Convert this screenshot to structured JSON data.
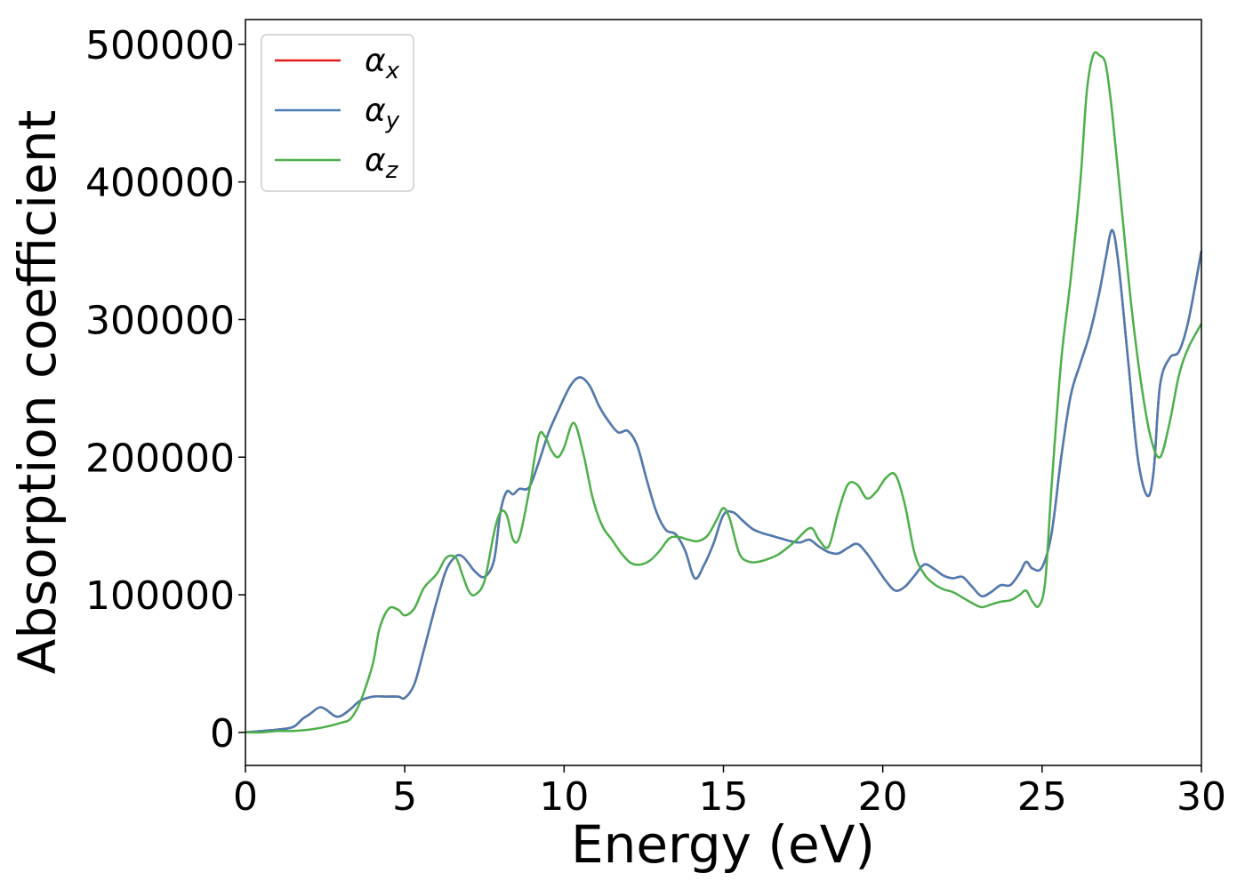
{
  "chart_data": {
    "type": "line",
    "title": "",
    "xlabel": "Energy (eV)",
    "ylabel": "Absorption coefficient",
    "xlim": [
      0,
      30
    ],
    "ylim": [
      -24000,
      518000
    ],
    "x_ticks": [
      0,
      5,
      10,
      15,
      20,
      25,
      30
    ],
    "y_ticks": [
      0,
      100000,
      200000,
      300000,
      400000,
      500000
    ],
    "grid": false,
    "legend_position": "top-left",
    "colors": {
      "alpha_x": "#e41a1c",
      "alpha_y": "#4a7db3",
      "alpha_z": "#4daf4a"
    },
    "series": [
      {
        "name": "α_x",
        "legend_base": "α",
        "legend_sub": "x",
        "color": "#e41a1c",
        "hidden_under": "α_y",
        "x": [
          0,
          0.5,
          1,
          1.5,
          1.8,
          2.0,
          2.3,
          2.5,
          2.8,
          3.0,
          3.3,
          3.6,
          4.0,
          4.4,
          4.8,
          5.0,
          5.3,
          5.6,
          6.0,
          6.3,
          6.6,
          6.8,
          7.0,
          7.2,
          7.5,
          7.8,
          8.0,
          8.2,
          8.4,
          8.6,
          8.9,
          9.2,
          9.5,
          9.8,
          10.2,
          10.5,
          10.8,
          11.1,
          11.4,
          11.7,
          12.0,
          12.3,
          12.6,
          12.9,
          13.2,
          13.5,
          13.8,
          14.1,
          14.4,
          14.7,
          15.0,
          15.3,
          15.6,
          15.9,
          16.2,
          16.5,
          16.8,
          17.1,
          17.4,
          17.7,
          18.0,
          18.3,
          18.6,
          18.9,
          19.2,
          19.5,
          19.8,
          20.1,
          20.4,
          20.7,
          21.0,
          21.3,
          21.6,
          21.9,
          22.2,
          22.5,
          22.8,
          23.1,
          23.4,
          23.7,
          24.0,
          24.3,
          24.5,
          24.7,
          25.0,
          25.3,
          25.6,
          25.9,
          26.2,
          26.5,
          26.8,
          27.0,
          27.2,
          27.4,
          27.7,
          28.0,
          28.3,
          28.5,
          28.7,
          29.0,
          29.3,
          29.6,
          30.0
        ],
        "y": [
          0,
          1000,
          2000,
          4000,
          10000,
          13000,
          18000,
          17000,
          12000,
          12000,
          17000,
          23000,
          26000,
          26000,
          26000,
          25000,
          35000,
          60000,
          95000,
          118000,
          128000,
          128000,
          123000,
          117000,
          113000,
          125000,
          160000,
          175000,
          173000,
          177000,
          178000,
          196000,
          217000,
          233000,
          252000,
          258000,
          252000,
          237000,
          226000,
          218000,
          219000,
          208000,
          183000,
          160000,
          147000,
          144000,
          132000,
          112000,
          122000,
          138000,
          158000,
          160000,
          154000,
          148000,
          145000,
          143000,
          141000,
          139000,
          138000,
          140000,
          135000,
          131000,
          130000,
          134000,
          137000,
          130000,
          120000,
          110000,
          103000,
          106000,
          114000,
          122000,
          119000,
          114000,
          112000,
          113000,
          106000,
          99000,
          102000,
          107000,
          107000,
          116000,
          124000,
          119000,
          120000,
          145000,
          200000,
          245000,
          268000,
          290000,
          320000,
          345000,
          365000,
          340000,
          270000,
          200000,
          172000,
          190000,
          252000,
          272000,
          277000,
          300000,
          350000
        ]
      },
      {
        "name": "α_y",
        "legend_base": "α",
        "legend_sub": "y",
        "color": "#4a7db3",
        "x": [
          0,
          0.5,
          1,
          1.5,
          1.8,
          2.0,
          2.3,
          2.5,
          2.8,
          3.0,
          3.3,
          3.6,
          4.0,
          4.4,
          4.8,
          5.0,
          5.3,
          5.6,
          6.0,
          6.3,
          6.6,
          6.8,
          7.0,
          7.2,
          7.5,
          7.8,
          8.0,
          8.2,
          8.4,
          8.6,
          8.9,
          9.2,
          9.5,
          9.8,
          10.2,
          10.5,
          10.8,
          11.1,
          11.4,
          11.7,
          12.0,
          12.3,
          12.6,
          12.9,
          13.2,
          13.5,
          13.8,
          14.1,
          14.4,
          14.7,
          15.0,
          15.3,
          15.6,
          15.9,
          16.2,
          16.5,
          16.8,
          17.1,
          17.4,
          17.7,
          18.0,
          18.3,
          18.6,
          18.9,
          19.2,
          19.5,
          19.8,
          20.1,
          20.4,
          20.7,
          21.0,
          21.3,
          21.6,
          21.9,
          22.2,
          22.5,
          22.8,
          23.1,
          23.4,
          23.7,
          24.0,
          24.3,
          24.5,
          24.7,
          25.0,
          25.3,
          25.6,
          25.9,
          26.2,
          26.5,
          26.8,
          27.0,
          27.2,
          27.4,
          27.7,
          28.0,
          28.3,
          28.5,
          28.7,
          29.0,
          29.3,
          29.6,
          30.0
        ],
        "y": [
          0,
          1000,
          2000,
          4000,
          10000,
          13000,
          18000,
          17000,
          12000,
          12000,
          17000,
          23000,
          26000,
          26000,
          26000,
          25000,
          35000,
          60000,
          95000,
          118000,
          128000,
          128000,
          123000,
          117000,
          113000,
          125000,
          160000,
          175000,
          173000,
          177000,
          178000,
          196000,
          217000,
          233000,
          252000,
          258000,
          252000,
          237000,
          226000,
          218000,
          219000,
          208000,
          183000,
          160000,
          147000,
          144000,
          132000,
          112000,
          122000,
          138000,
          158000,
          160000,
          154000,
          148000,
          145000,
          143000,
          141000,
          139000,
          138000,
          140000,
          135000,
          131000,
          130000,
          134000,
          137000,
          130000,
          120000,
          110000,
          103000,
          106000,
          114000,
          122000,
          119000,
          114000,
          112000,
          113000,
          106000,
          99000,
          102000,
          107000,
          107000,
          116000,
          124000,
          119000,
          120000,
          145000,
          200000,
          245000,
          268000,
          290000,
          320000,
          345000,
          365000,
          340000,
          270000,
          200000,
          172000,
          190000,
          252000,
          272000,
          277000,
          300000,
          350000
        ]
      },
      {
        "name": "α_z",
        "legend_base": "α",
        "legend_sub": "z",
        "color": "#4daf4a",
        "x": [
          0,
          0.5,
          1,
          1.5,
          2.0,
          2.5,
          3.0,
          3.3,
          3.6,
          4.0,
          4.2,
          4.5,
          4.8,
          5.0,
          5.3,
          5.6,
          6.0,
          6.3,
          6.6,
          6.8,
          7.0,
          7.2,
          7.5,
          7.8,
          8.0,
          8.2,
          8.4,
          8.6,
          8.9,
          9.2,
          9.4,
          9.6,
          9.8,
          10.0,
          10.3,
          10.6,
          10.9,
          11.2,
          11.5,
          11.8,
          12.1,
          12.4,
          12.7,
          13.0,
          13.3,
          13.6,
          13.9,
          14.2,
          14.5,
          14.8,
          15.0,
          15.2,
          15.5,
          15.8,
          16.1,
          16.4,
          16.7,
          17.0,
          17.3,
          17.6,
          17.8,
          18.0,
          18.3,
          18.6,
          18.9,
          19.2,
          19.5,
          19.8,
          20.1,
          20.4,
          20.7,
          21.0,
          21.3,
          21.6,
          21.9,
          22.2,
          22.5,
          22.8,
          23.1,
          23.4,
          23.7,
          24.0,
          24.3,
          24.5,
          24.7,
          24.9,
          25.1,
          25.3,
          25.6,
          25.9,
          26.2,
          26.4,
          26.6,
          26.8,
          27.0,
          27.2,
          27.5,
          27.8,
          28.1,
          28.4,
          28.7,
          29.0,
          29.3,
          29.6,
          30.0
        ],
        "y": [
          0,
          0,
          1000,
          1000,
          2000,
          4000,
          7000,
          10000,
          22000,
          50000,
          75000,
          90000,
          89000,
          85000,
          90000,
          105000,
          115000,
          127000,
          127000,
          115000,
          103000,
          100000,
          110000,
          145000,
          160000,
          158000,
          140000,
          142000,
          175000,
          215000,
          215000,
          205000,
          200000,
          207000,
          225000,
          203000,
          170000,
          150000,
          140000,
          130000,
          123000,
          122000,
          125000,
          132000,
          141000,
          142000,
          140000,
          139000,
          143000,
          155000,
          163000,
          155000,
          130000,
          124000,
          124000,
          126000,
          129000,
          134000,
          140000,
          147000,
          148000,
          140000,
          135000,
          160000,
          180000,
          180000,
          170000,
          175000,
          185000,
          187000,
          165000,
          130000,
          115000,
          108000,
          104000,
          102000,
          98000,
          94000,
          91000,
          93000,
          95000,
          96000,
          100000,
          103000,
          95000,
          92000,
          110000,
          180000,
          270000,
          330000,
          400000,
          465000,
          492000,
          492000,
          485000,
          450000,
          380000,
          310000,
          255000,
          215000,
          200000,
          225000,
          260000,
          280000,
          297000
        ]
      }
    ]
  }
}
